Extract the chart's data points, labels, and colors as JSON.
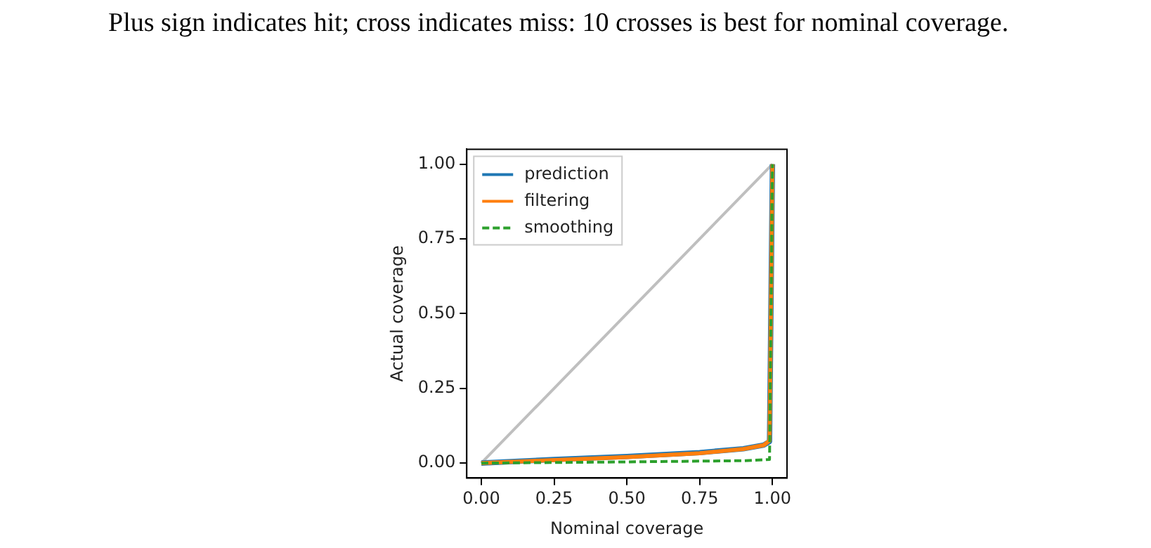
{
  "chart_data": {
    "type": "line",
    "xlabel": "Nominal coverage",
    "ylabel": "Actual coverage",
    "annotations": [
      "Plus sign indicates hit; cross indicates miss: 10 crosses is best for nominal coverage."
    ],
    "xlim": [
      -0.05,
      1.05
    ],
    "ylim": [
      -0.05,
      1.05
    ],
    "xticks": [
      {
        "value": 0,
        "label": "0.00"
      },
      {
        "value": 0.25,
        "label": "0.25"
      },
      {
        "value": 0.5,
        "label": "0.50"
      },
      {
        "value": 0.75,
        "label": "0.75"
      },
      {
        "value": 1,
        "label": "1.00"
      }
    ],
    "yticks": [
      {
        "value": 0,
        "label": "0.00"
      },
      {
        "value": 0.25,
        "label": "0.25"
      },
      {
        "value": 0.5,
        "label": "0.50"
      },
      {
        "value": 0.75,
        "label": "0.75"
      },
      {
        "value": 1,
        "label": "1.00"
      }
    ],
    "grid": false,
    "legend": "top left",
    "marker": "none",
    "series": [
      {
        "color": "#bfbfbf",
        "x": [
          0,
          1
        ],
        "values": [
          0,
          1
        ],
        "line_style": "solid"
      },
      {
        "name": "prediction",
        "color": "#1f77b4",
        "line_style": "solid",
        "x": [
          0,
          0.25,
          0.5,
          0.75,
          0.9,
          0.97,
          0.99,
          1.0
        ],
        "values": [
          0,
          0.012,
          0.022,
          0.035,
          0.048,
          0.06,
          0.072,
          1.0
        ]
      },
      {
        "name": "filtering",
        "color": "#ff7f0e",
        "line_style": "solid",
        "x": [
          0,
          0.25,
          0.5,
          0.75,
          0.9,
          0.97,
          0.99,
          1.0
        ],
        "values": [
          0,
          0.01,
          0.02,
          0.033,
          0.047,
          0.06,
          0.075,
          1.0
        ]
      },
      {
        "name": "smoothing",
        "color": "#2ca02c",
        "line_style": "dashed",
        "x": [
          0,
          0.5,
          0.9,
          0.99,
          1.0
        ],
        "values": [
          0,
          0.004,
          0.008,
          0.012,
          1.0
        ]
      }
    ]
  }
}
